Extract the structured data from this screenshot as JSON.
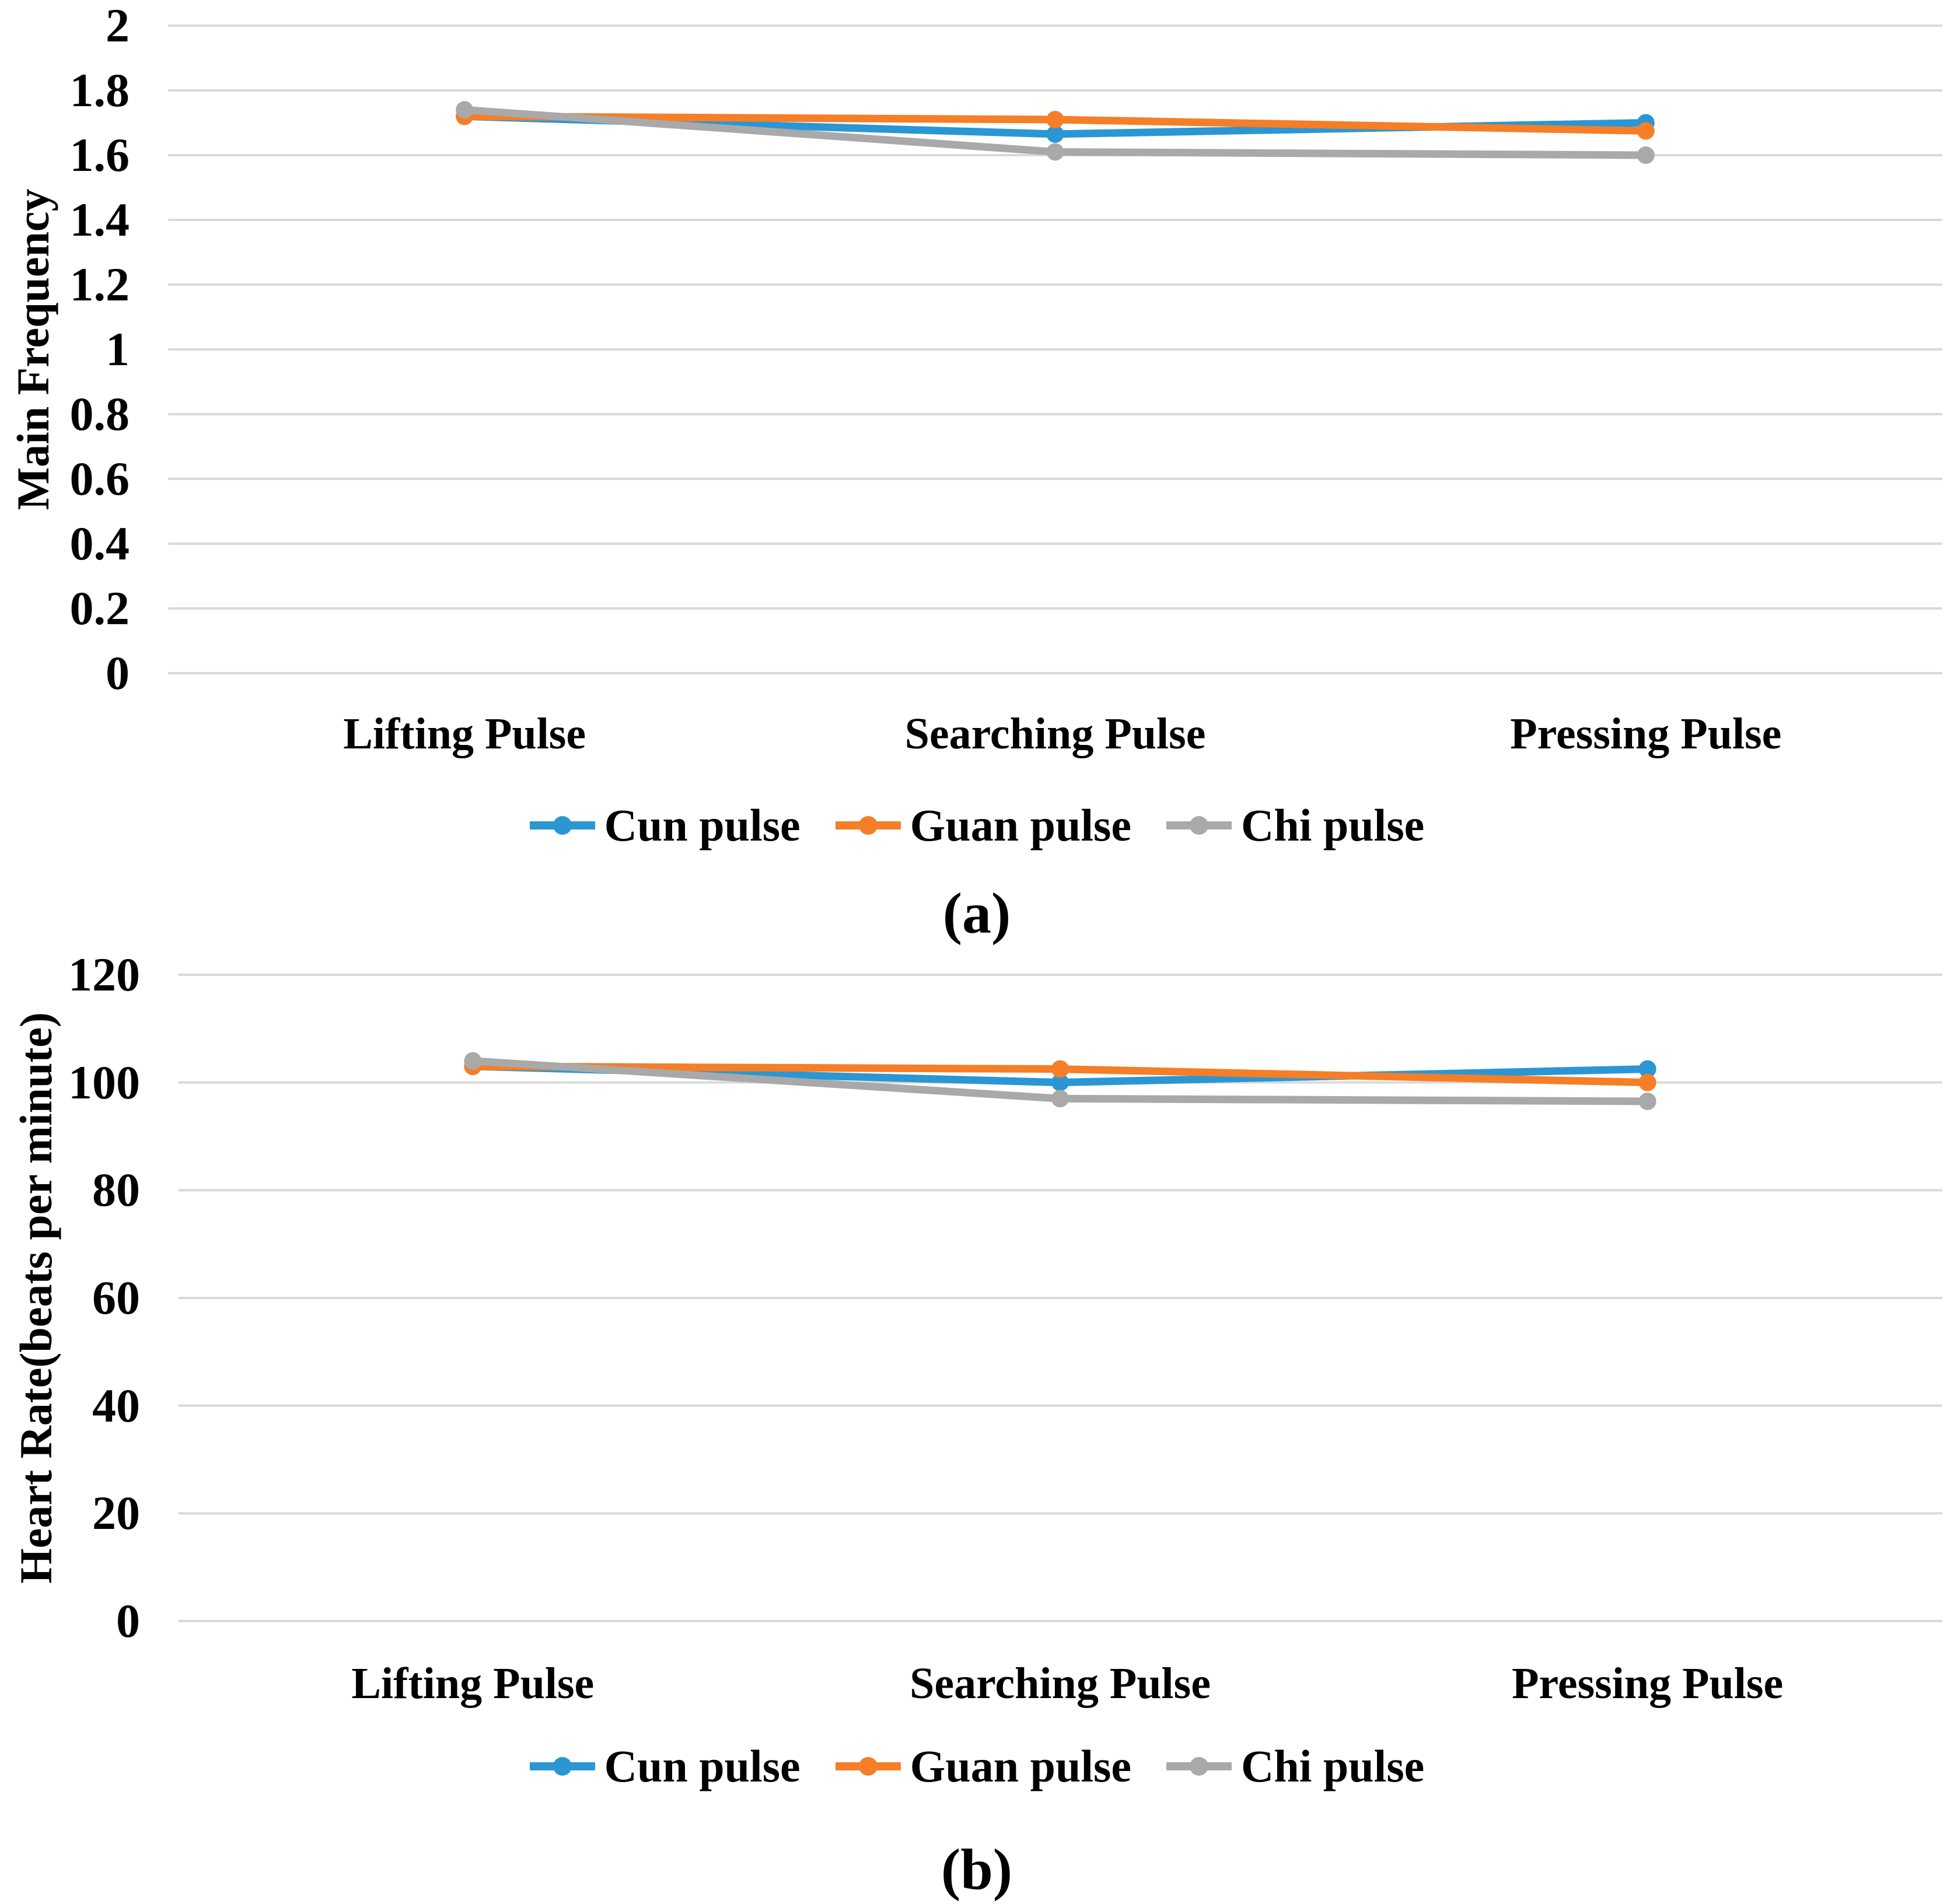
{
  "page": {
    "background": "#ffffff",
    "text_color": "#000000"
  },
  "chart_data": [
    {
      "type": "line",
      "title": "",
      "caption": "(a)",
      "ylabel": "Main Frequency",
      "xlabel": "",
      "categories": [
        "Lifting Pulse",
        "Searching Pulse",
        "Pressing Pulse"
      ],
      "series": [
        {
          "name": "Cun pulse",
          "color": "#2B96D4",
          "values": [
            1.72,
            1.665,
            1.7
          ]
        },
        {
          "name": "Guan pulse",
          "color": "#F57E27",
          "values": [
            1.72,
            1.71,
            1.675
          ]
        },
        {
          "name": "Chi pulse",
          "color": "#A9A9A9",
          "values": [
            1.74,
            1.61,
            1.6
          ]
        }
      ],
      "ylim": [
        0,
        2
      ],
      "y_tick_step": 0.2,
      "y_tick_labels": [
        "2",
        "1.8",
        "1.6",
        "1.4",
        "1.2",
        "1",
        "0.8",
        "0.6",
        "0.4",
        "0.2",
        "0"
      ],
      "grid": true,
      "gridline_color": "#D9D9D9",
      "legend_position": "bottom",
      "marker": "circle"
    },
    {
      "type": "line",
      "title": "",
      "caption": "(b)",
      "ylabel": "Heart Rate(beats per minute)",
      "xlabel": "",
      "categories": [
        "Lifting Pulse",
        "Searching Pulse",
        "Pressing Pulse"
      ],
      "series": [
        {
          "name": "Cun pulse",
          "color": "#2B96D4",
          "values": [
            103,
            100,
            102.5
          ]
        },
        {
          "name": "Guan pulse",
          "color": "#F57E27",
          "values": [
            103,
            102.5,
            100
          ]
        },
        {
          "name": "Chi pulse",
          "color": "#A9A9A9",
          "values": [
            104,
            97,
            96.5
          ]
        }
      ],
      "ylim": [
        0,
        120
      ],
      "y_tick_step": 20,
      "y_tick_labels": [
        "120",
        "100",
        "80",
        "60",
        "40",
        "20",
        "0"
      ],
      "grid": true,
      "gridline_color": "#D9D9D9",
      "legend_position": "bottom",
      "marker": "circle"
    }
  ]
}
